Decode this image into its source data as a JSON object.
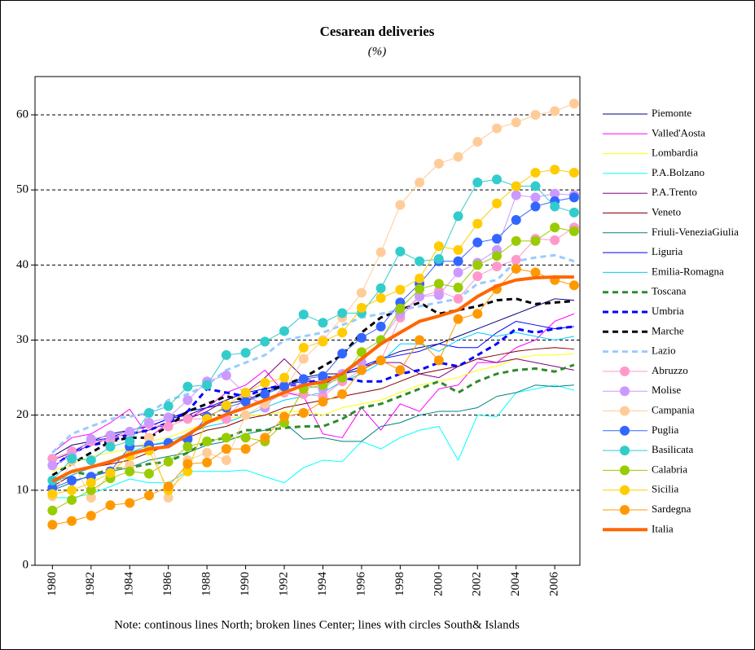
{
  "chart_data": {
    "type": "line",
    "title": "Cesarean deliveries",
    "subtitle": "(%)",
    "note": "Note: continous lines North; broken lines Center; lines with circles South& Islands",
    "x": [
      1980,
      1981,
      1982,
      1983,
      1984,
      1985,
      1986,
      1987,
      1988,
      1989,
      1990,
      1991,
      1992,
      1993,
      1994,
      1995,
      1996,
      1997,
      1998,
      1999,
      2000,
      2001,
      2002,
      2003,
      2004,
      2005,
      2006,
      2007
    ],
    "xlim": [
      1979.1,
      2007.3
    ],
    "xticks": [
      1980,
      1982,
      1984,
      1986,
      1988,
      1990,
      1992,
      1994,
      1996,
      1998,
      2000,
      2002,
      2004,
      2006
    ],
    "ylim": [
      0,
      65.1
    ],
    "yticks": [
      0,
      10,
      20,
      30,
      40,
      50,
      60
    ],
    "grid": true,
    "legend": "right",
    "series": [
      {
        "name": "Piemonte",
        "color": "#000080",
        "style": "solid",
        "width": 1,
        "values": [
          14.5,
          16.0,
          16.5,
          17.5,
          18.0,
          18.5,
          19.5,
          20.0,
          21.0,
          21.5,
          22.0,
          23.0,
          24.0,
          25.0,
          25.5,
          25.5,
          26.0,
          27.5,
          28.5,
          29.0,
          29.5,
          30.5,
          31.5,
          32.5,
          33.5,
          34.5,
          35.5,
          35.3
        ]
      },
      {
        "name": "Valled'Aosta",
        "color": "#ff00ff",
        "style": "solid",
        "width": 1,
        "values": [
          15.0,
          17.0,
          17.5,
          19.0,
          20.8,
          17.0,
          19.0,
          19.5,
          21.0,
          23.0,
          24.0,
          26.0,
          23.0,
          22.5,
          17.5,
          17.0,
          21.0,
          18.0,
          21.5,
          20.5,
          23.5,
          24.0,
          27.0,
          27.0,
          29.0,
          30.0,
          32.5,
          33.5
        ]
      },
      {
        "name": "Lombardia",
        "color": "#ffff00",
        "style": "solid",
        "width": 1,
        "values": [
          12.5,
          13.5,
          14.5,
          15.0,
          15.5,
          16.5,
          17.0,
          18.0,
          19.0,
          19.5,
          20.0,
          20.0,
          20.5,
          20.5,
          20.0,
          21.0,
          21.5,
          22.0,
          23.0,
          24.0,
          24.5,
          25.0,
          26.0,
          26.5,
          27.5,
          28.0,
          28.0,
          28.2
        ]
      },
      {
        "name": "P.A.Bolzano",
        "color": "#00ffff",
        "style": "solid",
        "width": 1,
        "values": [
          9.0,
          9.0,
          9.5,
          10.5,
          11.5,
          11.0,
          11.0,
          12.5,
          12.5,
          12.5,
          12.7,
          11.8,
          11.0,
          13.0,
          14.0,
          13.8,
          16.5,
          15.5,
          17.0,
          18.0,
          18.5,
          14.0,
          20.0,
          19.8,
          23.0,
          23.5,
          24.0,
          23.3
        ]
      },
      {
        "name": "P.A.Trento",
        "color": "#800080",
        "style": "solid",
        "width": 1,
        "values": [
          14.0,
          15.0,
          16.0,
          17.0,
          17.5,
          18.0,
          19.0,
          19.5,
          20.5,
          22.0,
          23.0,
          25.0,
          27.5,
          25.0,
          24.0,
          25.5,
          26.5,
          27.0,
          27.0,
          25.5,
          25.0,
          26.5,
          27.5,
          27.0,
          27.5,
          27.0,
          26.5,
          26.0
        ]
      },
      {
        "name": "Veneto",
        "color": "#800000",
        "style": "solid",
        "width": 1,
        "values": [
          10.5,
          12.0,
          13.0,
          13.5,
          14.0,
          15.0,
          16.0,
          17.0,
          18.0,
          18.5,
          19.5,
          20.0,
          21.0,
          21.5,
          22.0,
          22.5,
          23.0,
          23.5,
          24.5,
          25.5,
          26.0,
          26.5,
          27.5,
          28.0,
          28.5,
          28.8,
          29.0,
          28.8
        ]
      },
      {
        "name": "Friuli-VeneziaGiulia",
        "color": "#008080",
        "style": "solid",
        "width": 1,
        "values": [
          10.0,
          11.0,
          12.0,
          12.5,
          13.0,
          14.0,
          14.5,
          15.0,
          16.0,
          16.5,
          17.5,
          18.0,
          19.0,
          16.8,
          17.0,
          16.5,
          16.5,
          18.5,
          19.0,
          20.0,
          20.5,
          20.5,
          21.0,
          22.5,
          23.0,
          24.0,
          23.8,
          24.0
        ]
      },
      {
        "name": "Liguria",
        "color": "#0000ff",
        "style": "solid",
        "width": 1,
        "values": [
          13.0,
          15.0,
          16.5,
          17.0,
          18.0,
          18.5,
          19.5,
          20.5,
          21.0,
          22.0,
          23.0,
          23.5,
          24.0,
          24.5,
          24.5,
          25.5,
          26.5,
          27.5,
          28.0,
          28.5,
          29.5,
          29.0,
          29.0,
          31.0,
          32.5,
          32.0,
          31.5,
          31.8
        ]
      },
      {
        "name": "Emilia-Romagna",
        "color": "#00ccff",
        "style": "solid",
        "width": 1,
        "values": [
          11.0,
          12.0,
          13.0,
          14.0,
          15.0,
          16.0,
          16.5,
          17.5,
          18.5,
          19.0,
          20.0,
          21.0,
          22.0,
          22.5,
          23.0,
          24.5,
          25.5,
          27.0,
          29.5,
          29.5,
          28.5,
          30.0,
          31.0,
          30.5,
          31.0,
          30.5,
          30.0,
          30.5
        ]
      },
      {
        "name": "Toscana",
        "color": "#2e8b2e",
        "style": "dashed",
        "width": 3,
        "values": [
          11.0,
          12.5,
          12.0,
          12.8,
          13.0,
          13.5,
          13.8,
          15.0,
          16.5,
          17.0,
          18.0,
          18.0,
          18.3,
          18.5,
          18.5,
          19.5,
          21.0,
          21.5,
          22.5,
          23.5,
          24.5,
          23.0,
          24.5,
          25.5,
          26.0,
          26.2,
          25.8,
          26.7
        ]
      },
      {
        "name": "Umbria",
        "color": "#0000ff",
        "style": "dashed",
        "width": 3,
        "values": [
          13.0,
          15.0,
          16.0,
          16.5,
          17.5,
          18.0,
          19.0,
          20.5,
          23.5,
          23.0,
          22.5,
          23.5,
          24.0,
          24.0,
          25.0,
          25.0,
          24.5,
          24.5,
          25.5,
          26.0,
          27.0,
          26.5,
          28.0,
          29.5,
          31.5,
          31.0,
          31.5,
          31.8
        ]
      },
      {
        "name": "Marche",
        "color": "#000000",
        "style": "dashed",
        "width": 3,
        "values": [
          12.0,
          13.5,
          15.0,
          16.5,
          17.0,
          17.0,
          18.5,
          20.5,
          21.5,
          22.5,
          22.0,
          23.0,
          24.0,
          25.0,
          26.5,
          28.0,
          31.0,
          33.0,
          34.0,
          35.0,
          33.5,
          34.0,
          34.5,
          35.3,
          35.5,
          34.8,
          35.0,
          35.2
        ]
      },
      {
        "name": "Lazio",
        "color": "#99ccff",
        "style": "dashed",
        "width": 3,
        "values": [
          15.0,
          17.5,
          18.5,
          19.5,
          19.8,
          20.3,
          22.0,
          22.8,
          24.0,
          26.0,
          27.0,
          28.0,
          30.0,
          30.5,
          31.0,
          32.0,
          33.0,
          33.5,
          34.0,
          34.5,
          35.0,
          35.5,
          37.5,
          38.0,
          40.5,
          41.0,
          41.3,
          40.5
        ]
      },
      {
        "name": "Abruzzo",
        "color": "#ff99cc",
        "style": "circles",
        "width": 1,
        "values": [
          14.2,
          15.2,
          16.5,
          16.7,
          17.8,
          18.8,
          18.5,
          19.5,
          19.5,
          19.5,
          22.5,
          21.5,
          23.0,
          22.8,
          22.5,
          24.5,
          26.0,
          27.3,
          33.0,
          35.8,
          36.5,
          35.5,
          38.5,
          39.8,
          40.7,
          43.5,
          43.3,
          45.0
        ]
      },
      {
        "name": "Molise",
        "color": "#cc99ff",
        "style": "circles",
        "width": 1,
        "values": [
          13.3,
          14.5,
          16.8,
          17.3,
          17.8,
          19.0,
          19.7,
          22.0,
          24.5,
          25.3,
          22.8,
          21.0,
          24.0,
          24.0,
          23.5,
          25.5,
          27.0,
          30.0,
          33.5,
          35.8,
          36.0,
          39.0,
          40.3,
          42.0,
          49.3,
          49.0,
          49.5,
          49.3
        ]
      },
      {
        "name": "Campania",
        "color": "#ffcc99",
        "style": "circles",
        "width": 1,
        "values": [
          9.2,
          13.9,
          9.0,
          12.5,
          13.3,
          17.0,
          9.0,
          14.0,
          15.0,
          14.0,
          20.0,
          21.5,
          23.3,
          27.5,
          30.0,
          33.0,
          36.3,
          41.7,
          48.0,
          51.0,
          53.5,
          54.4,
          56.4,
          58.2,
          59.0,
          60.0,
          60.5,
          61.5
        ]
      },
      {
        "name": "Puglia",
        "color": "#3366ff",
        "style": "circles",
        "width": 1,
        "values": [
          10.3,
          11.3,
          11.8,
          12.5,
          15.8,
          16.0,
          16.3,
          16.8,
          19.8,
          21.0,
          21.8,
          22.8,
          23.8,
          24.8,
          25.2,
          28.2,
          30.3,
          31.8,
          35.0,
          37.5,
          40.5,
          40.5,
          43.0,
          43.5,
          46.0,
          47.8,
          48.5,
          49.0
        ]
      },
      {
        "name": "Basilicata",
        "color": "#33cccc",
        "style": "circles",
        "width": 1,
        "values": [
          11.3,
          14.2,
          14.0,
          15.8,
          16.5,
          20.3,
          21.2,
          23.8,
          24.0,
          28.0,
          28.3,
          29.8,
          31.2,
          33.4,
          32.3,
          33.6,
          33.6,
          36.9,
          41.8,
          40.5,
          40.8,
          46.5,
          51.0,
          51.4,
          50.5,
          50.5,
          47.8,
          47.0
        ]
      },
      {
        "name": "Calabria",
        "color": "#99cc00",
        "style": "circles",
        "width": 1,
        "values": [
          7.3,
          8.7,
          10.0,
          11.6,
          12.5,
          12.2,
          13.8,
          15.8,
          16.5,
          17.0,
          17.0,
          16.5,
          19.0,
          23.5,
          24.0,
          25.0,
          28.4,
          30.0,
          34.2,
          36.8,
          37.5,
          37.0,
          40.0,
          41.2,
          43.2,
          43.2,
          45.0,
          44.5
        ]
      },
      {
        "name": "Sicilia",
        "color": "#ffcc00",
        "style": "circles",
        "width": 1,
        "values": [
          9.5,
          10.0,
          11.0,
          12.3,
          14.6,
          15.3,
          10.0,
          12.5,
          19.5,
          21.3,
          23.0,
          24.3,
          25.0,
          29.0,
          29.8,
          31.0,
          34.3,
          35.6,
          36.7,
          38.2,
          42.5,
          42.0,
          45.5,
          48.2,
          50.5,
          52.3,
          52.7,
          52.3
        ]
      },
      {
        "name": "Sardegna",
        "color": "#ff9900",
        "style": "circles",
        "width": 1,
        "values": [
          5.4,
          5.9,
          6.6,
          8.0,
          8.3,
          9.3,
          10.5,
          13.5,
          13.7,
          15.5,
          15.5,
          17.0,
          19.8,
          20.3,
          21.8,
          22.8,
          26.0,
          27.3,
          26.0,
          30.0,
          27.3,
          32.8,
          33.5,
          36.8,
          39.5,
          39.0,
          38.0,
          37.3
        ]
      },
      {
        "name": "Italia",
        "color": "#ff6600",
        "style": "solid",
        "width": 4,
        "values": [
          11.2,
          12.5,
          13.1,
          13.8,
          14.8,
          15.5,
          15.8,
          17.4,
          19.0,
          20.1,
          21.0,
          22.0,
          23.0,
          24.0,
          24.4,
          25.5,
          27.5,
          29.5,
          31.0,
          32.5,
          33.2,
          34.0,
          35.8,
          37.2,
          38.0,
          38.3,
          38.4,
          38.4
        ]
      }
    ]
  }
}
